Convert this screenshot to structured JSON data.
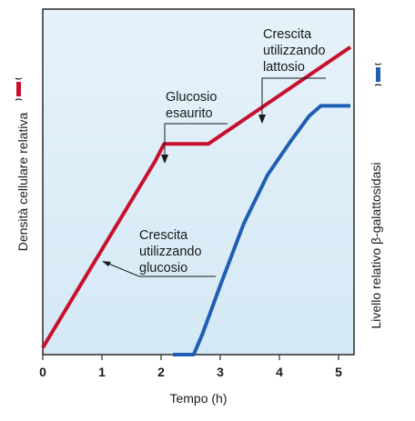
{
  "chart_data": {
    "type": "line",
    "xlabel": "Tempo (h)",
    "ylabel_left": "Densità cellulare relativa",
    "ylabel_right": "Livello relativo β-galattosidasi",
    "xlim": [
      0,
      5.2
    ],
    "xticks": [
      "0",
      "1",
      "2",
      "3",
      "4",
      "5"
    ],
    "grid": false,
    "series": [
      {
        "color": "#c8102e",
        "axis": "left",
        "points": [
          [
            0,
            0.02
          ],
          [
            1.9,
            0.56
          ],
          [
            2.05,
            0.61
          ],
          [
            2.8,
            0.61
          ],
          [
            5.2,
            0.89
          ]
        ]
      },
      {
        "color": "#1f5fb3",
        "axis": "right",
        "points": [
          [
            2.2,
            0.0
          ],
          [
            2.55,
            0.0
          ],
          [
            2.7,
            0.06
          ],
          [
            3.0,
            0.2
          ],
          [
            3.4,
            0.38
          ],
          [
            3.8,
            0.52
          ],
          [
            4.2,
            0.62
          ],
          [
            4.5,
            0.69
          ],
          [
            4.7,
            0.72
          ],
          [
            5.2,
            0.72
          ]
        ]
      }
    ],
    "annotations": [
      {
        "lines": [
          "Glucosio",
          "esaurito"
        ]
      },
      {
        "lines": [
          "Crescita",
          "utilizzando",
          "lattosio"
        ]
      },
      {
        "lines": [
          "Crescita",
          "utilizzando",
          "glucosio"
        ]
      }
    ]
  }
}
